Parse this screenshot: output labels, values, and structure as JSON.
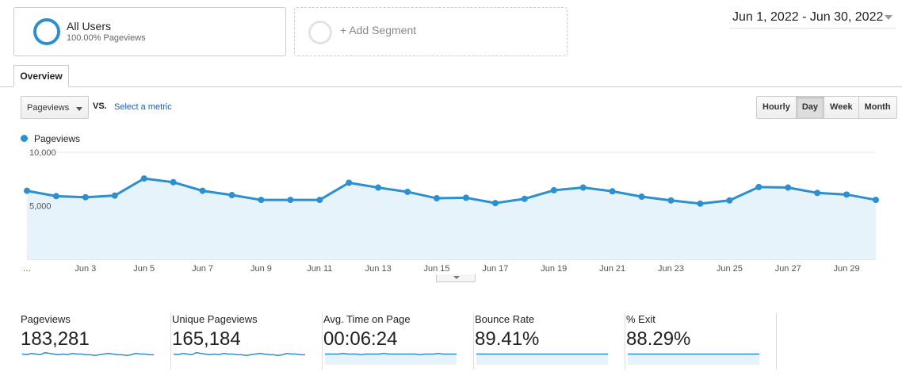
{
  "segments": {
    "all_users": {
      "title": "All Users",
      "subtitle": "100.00% Pageviews"
    },
    "add_segment": {
      "label": "+ Add Segment"
    }
  },
  "date_range": {
    "label": "Jun 1, 2022 - Jun 30, 2022"
  },
  "tabs": [
    {
      "label": "Overview"
    }
  ],
  "controls": {
    "metric": "Pageviews",
    "vs": "VS.",
    "select_metric": "Select a metric",
    "granularity": [
      "Hourly",
      "Day",
      "Week",
      "Month"
    ],
    "active_granularity": "Day"
  },
  "colors": {
    "accent": "#2b8fd0",
    "area_fill": "#e6f3fa"
  },
  "chart_data": {
    "type": "area",
    "legend": [
      "Pageviews"
    ],
    "yticks": [
      "10,000",
      "5,000"
    ],
    "ylim": [
      0,
      10000
    ],
    "y_tick_values": [
      10000,
      5000
    ],
    "xticks": [
      "…",
      "Jun 3",
      "Jun 5",
      "Jun 7",
      "Jun 9",
      "Jun 11",
      "Jun 13",
      "Jun 15",
      "Jun 17",
      "Jun 19",
      "Jun 21",
      "Jun 23",
      "Jun 25",
      "Jun 27",
      "Jun 29"
    ],
    "x_tick_days": [
      1,
      3,
      5,
      7,
      9,
      11,
      13,
      15,
      17,
      19,
      21,
      23,
      25,
      27,
      29
    ],
    "x": [
      1,
      2,
      3,
      4,
      5,
      6,
      7,
      8,
      9,
      10,
      11,
      12,
      13,
      14,
      15,
      16,
      17,
      18,
      19,
      20,
      21,
      22,
      23,
      24,
      25,
      26,
      27,
      28,
      29,
      30
    ],
    "series": [
      {
        "name": "Pageviews",
        "values": [
          6400,
          5900,
          5800,
          5950,
          7550,
          7200,
          6400,
          6000,
          5550,
          5550,
          5550,
          7150,
          6700,
          6300,
          5700,
          5750,
          5250,
          5650,
          6450,
          6700,
          6350,
          5850,
          5500,
          5200,
          5500,
          6750,
          6700,
          6200,
          6050,
          5550
        ]
      }
    ]
  },
  "summary": [
    {
      "title": "Pageviews",
      "value": "183,281",
      "spark": [
        5,
        4,
        6,
        5,
        4,
        7,
        6,
        5,
        4,
        5,
        4,
        6,
        5,
        5,
        4,
        4,
        3,
        4,
        5,
        6,
        5,
        4,
        4,
        3,
        4,
        6,
        5,
        5,
        4,
        4
      ],
      "area": false
    },
    {
      "title": "Unique Pageviews",
      "value": "165,184",
      "spark": [
        5,
        4,
        6,
        5,
        4,
        7,
        6,
        5,
        4,
        5,
        4,
        6,
        5,
        5,
        4,
        4,
        3,
        4,
        5,
        6,
        5,
        4,
        4,
        3,
        4,
        6,
        5,
        5,
        4,
        4
      ],
      "area": false
    },
    {
      "title": "Avg. Time on Page",
      "value": "00:06:24",
      "spark": [
        5,
        5,
        5,
        5,
        6,
        5,
        5,
        5,
        4,
        5,
        5,
        5,
        5,
        6,
        5,
        5,
        5,
        5,
        5,
        5,
        5,
        4,
        5,
        5,
        5,
        6,
        5,
        5,
        5,
        5
      ],
      "area": true
    },
    {
      "title": "Bounce Rate",
      "value": "89.41%",
      "spark": [
        5,
        5,
        5,
        5,
        5,
        5,
        5,
        5,
        5,
        5,
        5,
        5,
        5,
        5,
        5,
        5,
        5,
        5,
        5,
        5,
        5,
        5,
        5,
        5,
        5,
        5,
        5,
        5,
        5,
        5
      ],
      "area": true
    },
    {
      "title": "% Exit",
      "value": "88.29%",
      "spark": [
        5,
        5,
        5,
        5,
        5,
        5,
        5,
        5,
        5,
        5,
        5,
        5,
        5,
        5,
        5,
        5,
        5,
        5,
        5,
        5,
        5,
        5,
        5,
        5,
        5,
        5,
        5,
        5,
        5,
        5
      ],
      "area": true
    }
  ]
}
